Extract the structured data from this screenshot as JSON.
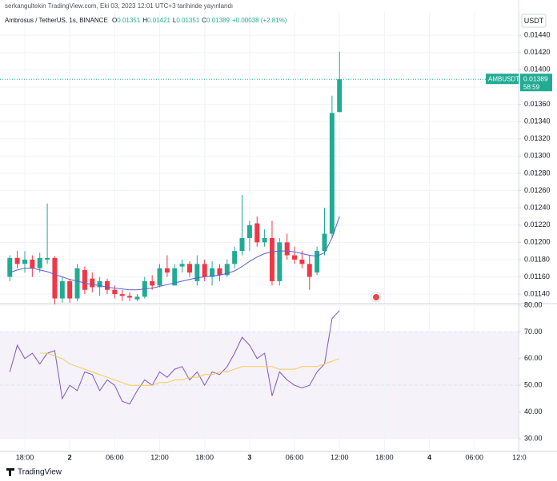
{
  "header": {
    "byline": "serkangultekin TradingView.com, Eki 03, 2023 12:01 UTC+3 tarihinde yayınlandı",
    "currency": "USDT",
    "brand": "TradingView"
  },
  "chart_data": [
    {
      "type": "candlestick",
      "title": "Ambrosus / TetherUS, 1s, BINANCE",
      "ohlc_legend": [
        {
          "label": "O",
          "value": "0.01351"
        },
        {
          "label": "H",
          "value": "0.01421"
        },
        {
          "label": "L",
          "value": "0.01351"
        },
        {
          "label": "C",
          "value": "0.01389"
        }
      ],
      "change": "+0.00038 (+2.81%)",
      "symbol": "AMBUSDT",
      "countdown": "58:59",
      "up_color": "#22ab94",
      "down_color": "#f23645",
      "open": [
        0.0116,
        0.01182,
        0.01175,
        0.0118,
        0.0117,
        0.0118,
        0.01182,
        0.01135,
        0.01155,
        0.01135,
        0.01168,
        0.01158,
        0.01148,
        0.01155,
        0.01145,
        0.0114,
        0.01138,
        0.01134,
        0.01137,
        0.01155,
        0.0115,
        0.0117,
        0.0115,
        0.01172,
        0.01175,
        0.01155,
        0.01175,
        0.0116,
        0.0117,
        0.01162,
        0.01175,
        0.0119,
        0.01205,
        0.01222,
        0.012,
        0.01205,
        0.01155,
        0.012,
        0.01185,
        0.0118,
        0.01175,
        0.01165,
        0.0119,
        0.0121,
        0.01351
      ],
      "high": [
        0.01185,
        0.0119,
        0.0119,
        0.01185,
        0.01188,
        0.01245,
        0.01184,
        0.0116,
        0.01158,
        0.01175,
        0.01172,
        0.01165,
        0.0116,
        0.01158,
        0.0115,
        0.01145,
        0.01142,
        0.0114,
        0.0116,
        0.01162,
        0.01175,
        0.01185,
        0.01175,
        0.0118,
        0.01178,
        0.01185,
        0.0118,
        0.01178,
        0.01175,
        0.0118,
        0.01195,
        0.01255,
        0.01225,
        0.0123,
        0.01215,
        0.01225,
        0.01205,
        0.0121,
        0.01195,
        0.0119,
        0.01185,
        0.01195,
        0.0124,
        0.0137,
        0.01421
      ],
      "low": [
        0.01155,
        0.0117,
        0.01165,
        0.0116,
        0.01165,
        0.01175,
        0.01128,
        0.0113,
        0.0113,
        0.01132,
        0.0114,
        0.01142,
        0.01138,
        0.0114,
        0.01135,
        0.01132,
        0.01132,
        0.01132,
        0.01135,
        0.01145,
        0.01148,
        0.0116,
        0.0115,
        0.01165,
        0.0116,
        0.0115,
        0.01155,
        0.0115,
        0.01155,
        0.0116,
        0.0117,
        0.01185,
        0.0119,
        0.01195,
        0.01195,
        0.0115,
        0.0115,
        0.0118,
        0.01175,
        0.0117,
        0.01145,
        0.01162,
        0.01185,
        0.01205,
        0.01351
      ],
      "close": [
        0.01182,
        0.01175,
        0.0118,
        0.0117,
        0.01182,
        0.01182,
        0.01135,
        0.01155,
        0.01135,
        0.0117,
        0.01145,
        0.01148,
        0.01155,
        0.01145,
        0.0114,
        0.01138,
        0.01136,
        0.01137,
        0.01155,
        0.0115,
        0.0117,
        0.01165,
        0.0117,
        0.01175,
        0.01165,
        0.01175,
        0.0116,
        0.0117,
        0.01162,
        0.01175,
        0.0119,
        0.01205,
        0.0122,
        0.012,
        0.01205,
        0.01155,
        0.012,
        0.01185,
        0.0118,
        0.01175,
        0.0116,
        0.0119,
        0.0121,
        0.0135,
        0.01389
      ],
      "series": [
        {
          "color": "#5b5fd1",
          "values": [
            0.01165,
            0.01168,
            0.0117,
            0.0117,
            0.01168,
            0.01166,
            0.01163,
            0.0116,
            0.01157,
            0.01155,
            0.01153,
            0.01151,
            0.0115,
            0.01148,
            0.01147,
            0.01146,
            0.01145,
            0.01145,
            0.01146,
            0.01147,
            0.01149,
            0.01151,
            0.01153,
            0.01155,
            0.01157,
            0.01159,
            0.0116,
            0.01161,
            0.01162,
            0.01164,
            0.01167,
            0.01172,
            0.01178,
            0.01183,
            0.01187,
            0.01189,
            0.0119,
            0.0119,
            0.01189,
            0.01187,
            0.01185,
            0.01184,
            0.01188,
            0.01205,
            0.0123
          ]
        }
      ],
      "xlim": [
        -1.31,
        67.9
      ],
      "ylim": [
        0.01129,
        0.01467
      ],
      "grid": true,
      "yticks": [
        {
          "value": 0.0114,
          "label": "0.01140"
        },
        {
          "value": 0.0116,
          "label": "0.01160"
        },
        {
          "value": 0.0118,
          "label": "0.01180"
        },
        {
          "value": 0.012,
          "label": "0.01200"
        },
        {
          "value": 0.0122,
          "label": "0.01220"
        },
        {
          "value": 0.0124,
          "label": "0.01240"
        },
        {
          "value": 0.0126,
          "label": "0.01260"
        },
        {
          "value": 0.0128,
          "label": "0.01280"
        },
        {
          "value": 0.013,
          "label": "0.01300"
        },
        {
          "value": 0.0132,
          "label": "0.01320"
        },
        {
          "value": 0.0134,
          "label": "0.01340"
        },
        {
          "value": 0.0136,
          "label": "0.01360"
        },
        {
          "value": 0.0138,
          "label": "0.01380"
        },
        {
          "value": 0.014,
          "label": "0.01400"
        },
        {
          "value": 0.0142,
          "label": "0.01420"
        },
        {
          "value": 0.0144,
          "label": "0.01440"
        }
      ]
    },
    {
      "type": "line",
      "band": [
        30,
        70
      ],
      "band_color": "#7e57c2",
      "levels": [
        30,
        50,
        70
      ],
      "series": [
        {
          "color": "#7e57c2",
          "values": [
            55,
            65,
            60,
            62,
            58,
            62,
            63,
            45,
            50,
            48,
            55,
            54,
            48,
            52,
            50,
            44,
            43,
            48,
            52,
            50,
            55,
            53,
            56,
            57,
            52,
            55,
            50,
            55,
            54,
            57,
            62,
            68,
            65,
            60,
            62,
            46,
            55,
            52,
            50,
            49,
            50,
            55,
            58,
            75,
            78
          ]
        },
        {
          "color": "#f5cc5a",
          "values": [
            null,
            null,
            null,
            null,
            62,
            62,
            61,
            60,
            58,
            57,
            56,
            55,
            54,
            53,
            52,
            51,
            50,
            50,
            50,
            50,
            51,
            51,
            52,
            52,
            53,
            53,
            54,
            54,
            55,
            55,
            56,
            57,
            57,
            57,
            57,
            57,
            56,
            56,
            56,
            57,
            57,
            57,
            58,
            59,
            60
          ]
        }
      ],
      "xlim": [
        -1.31,
        67.9
      ],
      "ylim": [
        25.2,
        80
      ],
      "grid": true,
      "yticks": [
        {
          "value": 30,
          "label": "30.00"
        },
        {
          "value": 40,
          "label": "40.00"
        },
        {
          "value": 50,
          "label": "50.00"
        },
        {
          "value": 60,
          "label": "60.00"
        },
        {
          "value": 70,
          "label": "70.00"
        },
        {
          "value": 80,
          "label": "80.00"
        }
      ],
      "xticks": [
        {
          "value": 2,
          "label": "18:00"
        },
        {
          "value": 8,
          "label": "2"
        },
        {
          "value": 14,
          "label": "06:00"
        },
        {
          "value": 20,
          "label": "12:00"
        },
        {
          "value": 26,
          "label": "18:00"
        },
        {
          "value": 32,
          "label": "3"
        },
        {
          "value": 38,
          "label": "06:00"
        },
        {
          "value": 44,
          "label": "12:00"
        },
        {
          "value": 50,
          "label": "18:00"
        },
        {
          "value": 56,
          "label": "4"
        },
        {
          "value": 62,
          "label": "06:00"
        },
        {
          "value": 68,
          "label": "12:0"
        }
      ]
    }
  ]
}
